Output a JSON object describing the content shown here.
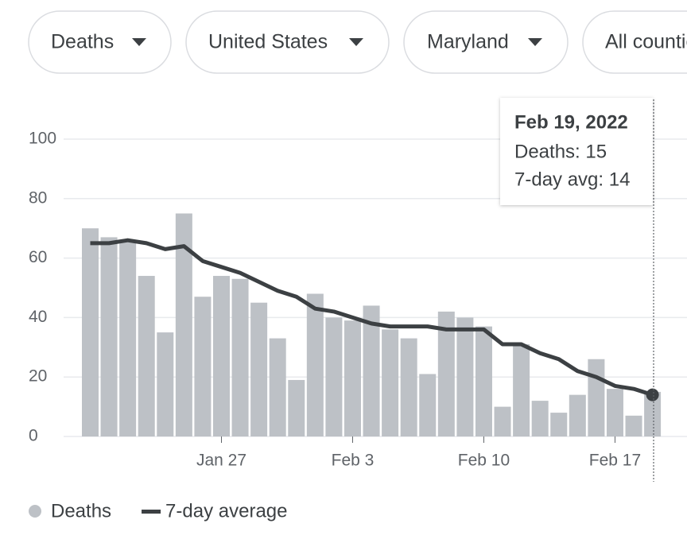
{
  "filters": [
    "Deaths",
    "United States",
    "Maryland",
    "All counties"
  ],
  "tooltip": {
    "title": "Feb 19, 2022",
    "lines": [
      "Deaths: 15",
      "7-day avg: 14"
    ]
  },
  "chart_data": {
    "type": "bar",
    "categories": [
      null,
      null,
      null,
      null,
      null,
      null,
      null,
      "Jan 27",
      null,
      null,
      null,
      null,
      null,
      null,
      "Feb 3",
      null,
      null,
      null,
      null,
      null,
      null,
      "Feb 10",
      null,
      null,
      null,
      null,
      null,
      null,
      "Feb 17",
      null,
      null
    ],
    "series": [
      {
        "name": "Deaths",
        "color": "#bdc1c6",
        "type": "bar",
        "values": [
          70,
          67,
          66,
          54,
          35,
          75,
          47,
          54,
          53,
          45,
          33,
          19,
          48,
          40,
          39,
          44,
          36,
          33,
          21,
          42,
          40,
          37,
          10,
          31,
          12,
          8,
          14,
          26,
          16,
          7,
          15
        ]
      },
      {
        "name": "7-day average",
        "color": "#3c4043",
        "type": "line",
        "values": [
          65,
          65,
          66,
          65,
          63,
          64,
          59,
          57,
          55,
          52,
          49,
          47,
          43,
          42,
          40,
          38,
          37,
          37,
          37,
          36,
          36,
          36,
          31,
          31,
          28,
          26,
          22,
          20,
          17,
          16,
          14
        ]
      }
    ],
    "ylim": [
      0,
      100
    ],
    "yticks": [
      0,
      20,
      40,
      60,
      80,
      100
    ],
    "grid": true
  }
}
